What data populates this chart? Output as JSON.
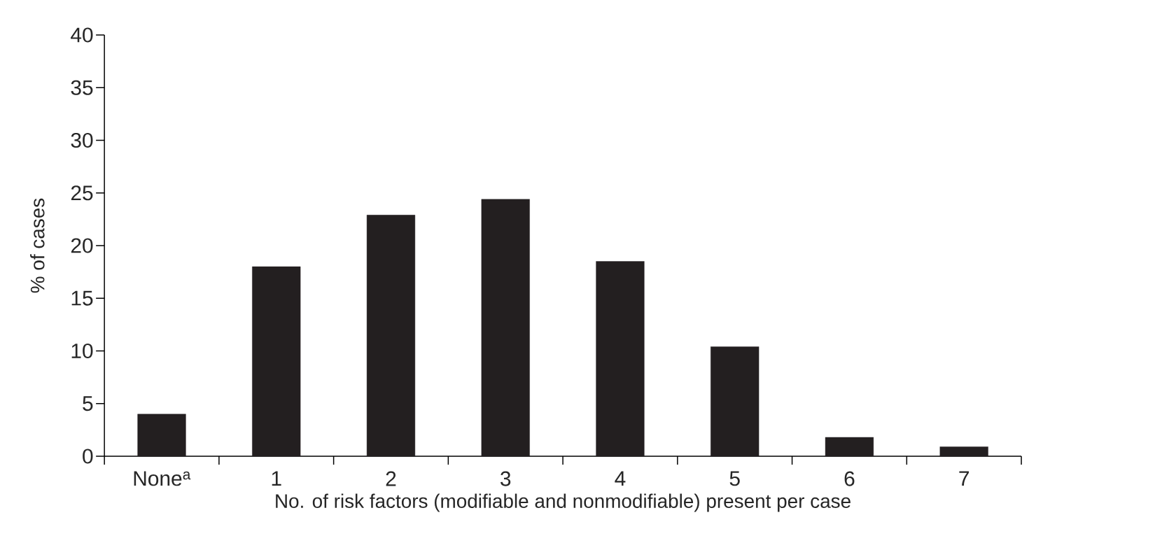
{
  "chart_data": {
    "type": "bar",
    "xlabel": "No. of risk factors (modifiable and nonmodifiable) present per case",
    "ylabel": "% of cases",
    "categories": [
      "None$^{a}$",
      "1",
      "2",
      "3",
      "4",
      "5",
      "6",
      "7"
    ],
    "values": [
      4.0,
      18.0,
      22.9,
      24.4,
      18.5,
      10.4,
      1.8,
      0.9
    ],
    "color": "#231f20",
    "ylim": [
      0,
      40
    ],
    "yticks": [
      0,
      5,
      10,
      15,
      20,
      25,
      30,
      35,
      40
    ]
  }
}
